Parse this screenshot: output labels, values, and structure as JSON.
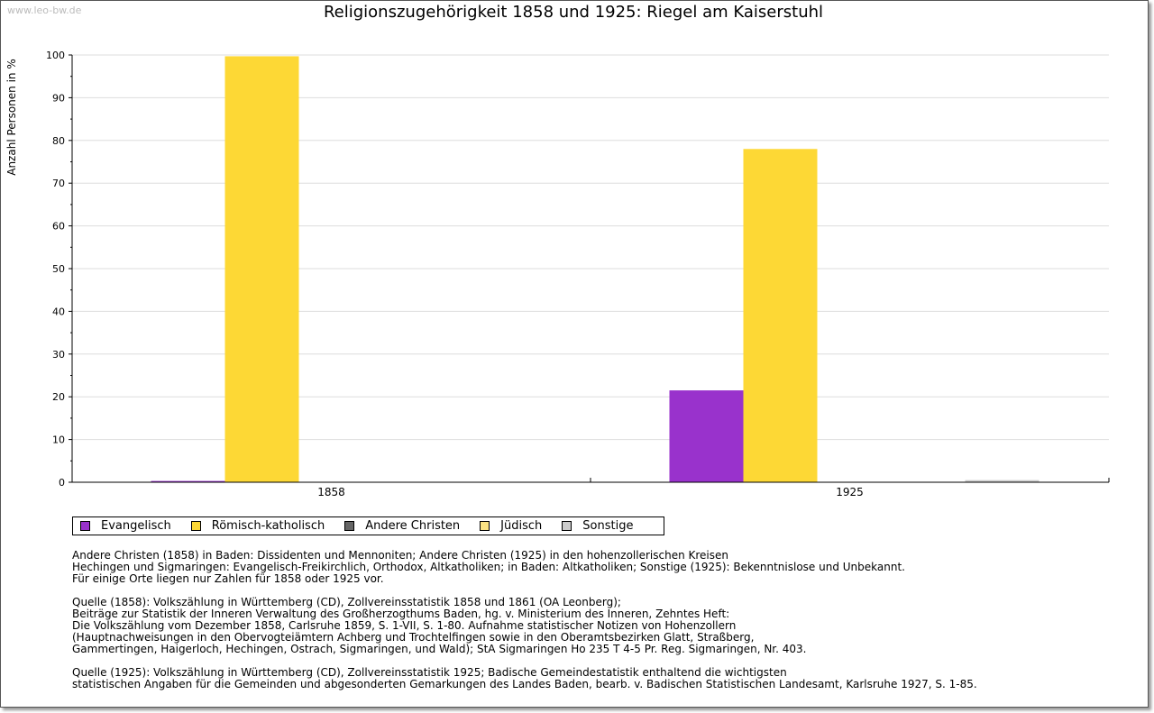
{
  "watermark": "www.leo-bw.de",
  "chart_data": {
    "type": "bar",
    "title": "Religionszugehörigkeit 1858 und 1925: Riegel am Kaiserstuhl",
    "xlabel": "",
    "ylabel": "Anzahl Personen in %",
    "ylim": [
      0,
      100
    ],
    "yticks": [
      "0",
      "10",
      "20",
      "30",
      "40",
      "50",
      "60",
      "70",
      "80",
      "90",
      "100"
    ],
    "categories": [
      "1858",
      "1925"
    ],
    "series": [
      {
        "name": "Evangelisch",
        "color": "#9932cc",
        "values": [
          0.3,
          21.5
        ]
      },
      {
        "name": "Römisch-katholisch",
        "color": "#fdd835",
        "values": [
          99.7,
          78.0
        ]
      },
      {
        "name": "Andere Christen",
        "color": "#666666",
        "values": [
          0,
          0
        ]
      },
      {
        "name": "Jüdisch",
        "color": "#fbe383",
        "values": [
          0,
          0
        ]
      },
      {
        "name": "Sonstige",
        "color": "#cccccc",
        "values": [
          0,
          0.5
        ]
      }
    ],
    "grid": true,
    "legend_position": "bottom-left"
  },
  "notes": [
    [
      "Andere Christen (1858) in Baden: Dissidenten und Mennoniten; Andere Christen (1925) in den hohenzollerischen Kreisen",
      "Hechingen und Sigmaringen: Evangelisch-Freikirchlich, Orthodox, Altkatholiken; in Baden: Altkatholiken; Sonstige (1925): Bekenntnislose und Unbekannt.",
      "Für einige Orte liegen nur Zahlen für 1858 oder 1925 vor."
    ],
    [
      "Quelle (1858): Volkszählung in Württemberg (CD), Zollvereinsstatistik 1858 und 1861 (OA Leonberg);",
      "Beiträge zur Statistik der Inneren Verwaltung des Großherzogthums Baden, hg. v. Ministerium des Inneren, Zehntes Heft:",
      "Die Volkszählung vom Dezember 1858, Carlsruhe 1859, S. 1-VII, S. 1-80. Aufnahme statistischer Notizen von Hohenzollern",
      "(Hauptnachweisungen in den Obervogteiämtern Achberg und Trochtelfingen sowie in den Oberamtsbezirken Glatt, Straßberg,",
      "Gammertingen, Haigerloch, Hechingen, Ostrach, Sigmaringen, und Wald); StA Sigmaringen Ho 235 T 4-5 Pr. Reg. Sigmaringen, Nr. 403."
    ],
    [
      "Quelle (1925): Volkszählung in Württemberg (CD), Zollvereinsstatistik 1925; Badische Gemeindestatistik enthaltend die wichtigsten",
      "statistischen Angaben für die Gemeinden und abgesonderten Gemarkungen des Landes Baden, bearb. v. Badischen Statistischen Landesamt, Karlsruhe 1927, S. 1-85."
    ]
  ]
}
